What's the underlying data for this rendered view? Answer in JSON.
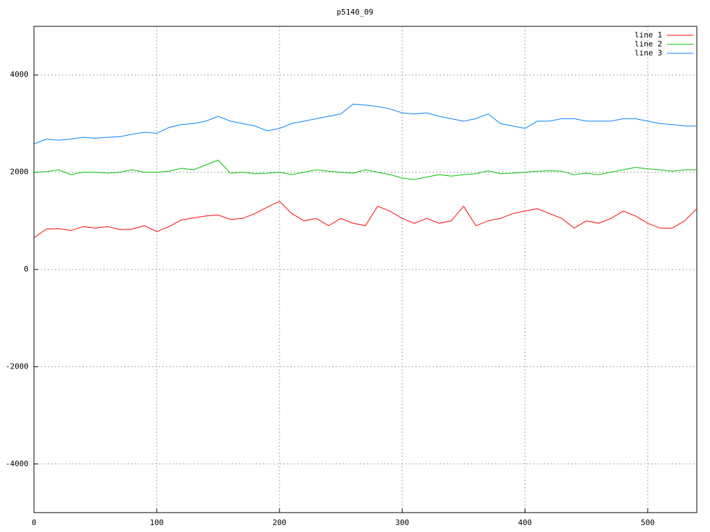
{
  "chart_data": {
    "type": "line",
    "title": "p5140_09",
    "x": [
      0,
      10,
      20,
      30,
      40,
      50,
      60,
      70,
      80,
      90,
      100,
      110,
      120,
      130,
      140,
      150,
      160,
      170,
      180,
      190,
      200,
      210,
      220,
      230,
      240,
      250,
      260,
      270,
      280,
      290,
      300,
      310,
      320,
      330,
      340,
      350,
      360,
      370,
      380,
      390,
      400,
      410,
      420,
      430,
      440,
      450,
      460,
      470,
      480,
      490,
      500,
      510,
      520,
      530,
      540
    ],
    "series": [
      {
        "name": "line 1",
        "color": "#ff0000",
        "values": [
          650,
          830,
          840,
          800,
          880,
          850,
          880,
          820,
          830,
          900,
          780,
          880,
          1020,
          1060,
          1100,
          1120,
          1030,
          1050,
          1150,
          1280,
          1400,
          1150,
          1000,
          1050,
          900,
          1050,
          950,
          900,
          1300,
          1200,
          1050,
          950,
          1050,
          950,
          1000,
          1300,
          900,
          1000,
          1050,
          1150,
          1200,
          1250,
          1150,
          1050,
          850,
          1000,
          950,
          1050,
          1200,
          1100,
          950,
          850,
          850,
          1000,
          1250
        ]
      },
      {
        "name": "line 2",
        "color": "#00c000",
        "values": [
          2000,
          2010,
          2050,
          1950,
          2000,
          2000,
          1980,
          2000,
          2050,
          2000,
          2000,
          2020,
          2080,
          2050,
          2150,
          2250,
          1980,
          2000,
          1970,
          1980,
          2000,
          1950,
          2000,
          2050,
          2020,
          2000,
          1980,
          2050,
          2000,
          1950,
          1880,
          1850,
          1900,
          1950,
          1920,
          1950,
          1970,
          2030,
          1970,
          1980,
          2000,
          2020,
          2030,
          2020,
          1950,
          1980,
          1950,
          2000,
          2050,
          2100,
          2070,
          2050,
          2020,
          2050,
          2050
        ]
      },
      {
        "name": "line 3",
        "color": "#0080ff",
        "values": [
          2580,
          2680,
          2660,
          2680,
          2720,
          2700,
          2720,
          2730,
          2780,
          2820,
          2800,
          2920,
          2980,
          3000,
          3050,
          3150,
          3050,
          3000,
          2950,
          2850,
          2900,
          3000,
          3050,
          3100,
          3150,
          3200,
          3400,
          3380,
          3350,
          3300,
          3220,
          3200,
          3220,
          3150,
          3100,
          3050,
          3100,
          3200,
          3000,
          2950,
          2900,
          3050,
          3050,
          3100,
          3100,
          3050,
          3050,
          3050,
          3100,
          3100,
          3050,
          3000,
          2980,
          2950,
          2950
        ]
      }
    ],
    "xlim": [
      0,
      540
    ],
    "xticks": [
      0,
      100,
      200,
      300,
      400,
      500
    ],
    "ylim": [
      -5000,
      5000
    ],
    "yticks": [
      -4000,
      -2000,
      0,
      2000,
      4000
    ],
    "grid": true,
    "legend": "top-right"
  }
}
